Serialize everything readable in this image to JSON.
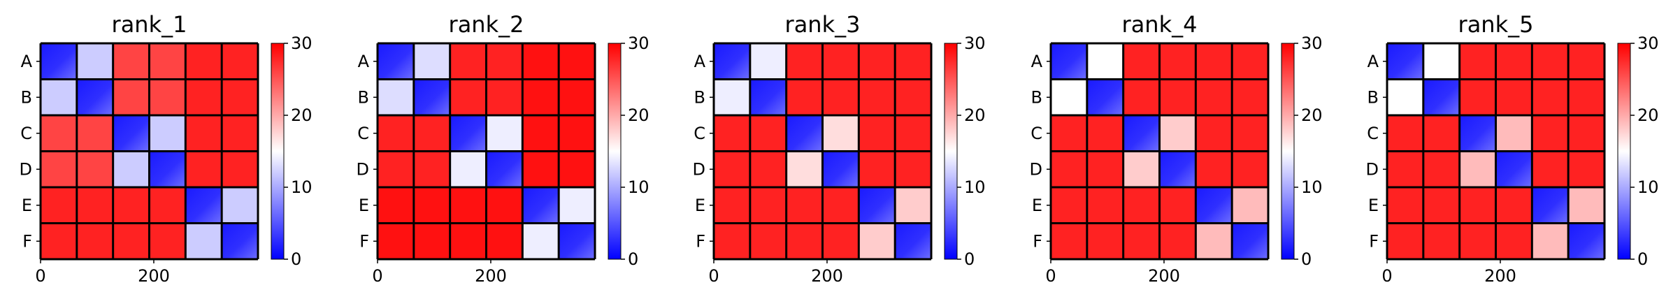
{
  "colorbar": {
    "colors": [
      "#0000ff",
      "#ffffff",
      "#ff0000"
    ],
    "min": 0,
    "max": 30,
    "ticks": [
      0,
      10,
      20,
      30
    ],
    "tick_labels": [
      "0",
      "10",
      "20",
      "30"
    ]
  },
  "chart_data": [
    {
      "type": "heatmap",
      "title": "rank_1",
      "block_labels": [
        "A",
        "B",
        "C",
        "D",
        "E",
        "F"
      ],
      "x_ticks": [
        0,
        200
      ],
      "x_tick_labels": [
        "0",
        "200"
      ],
      "xlim": [
        0,
        384
      ],
      "block_values": [
        [
          3,
          12,
          26,
          26,
          28,
          28
        ],
        [
          12,
          3,
          26,
          26,
          28,
          28
        ],
        [
          26,
          26,
          3,
          12,
          28,
          28
        ],
        [
          26,
          26,
          12,
          3,
          28,
          28
        ],
        [
          28,
          28,
          28,
          28,
          3,
          12
        ],
        [
          28,
          28,
          28,
          28,
          12,
          3
        ]
      ]
    },
    {
      "type": "heatmap",
      "title": "rank_2",
      "block_labels": [
        "A",
        "B",
        "C",
        "D",
        "E",
        "F"
      ],
      "x_ticks": [
        0,
        200
      ],
      "x_tick_labels": [
        "0",
        "200"
      ],
      "xlim": [
        0,
        384
      ],
      "block_values": [
        [
          3,
          13,
          28,
          28,
          29,
          29
        ],
        [
          13,
          3,
          28,
          28,
          29,
          29
        ],
        [
          28,
          28,
          3,
          14,
          29,
          29
        ],
        [
          28,
          28,
          14,
          3,
          29,
          29
        ],
        [
          29,
          29,
          29,
          29,
          3,
          14
        ],
        [
          29,
          29,
          29,
          29,
          14,
          3
        ]
      ]
    },
    {
      "type": "heatmap",
      "title": "rank_3",
      "block_labels": [
        "A",
        "B",
        "C",
        "D",
        "E",
        "F"
      ],
      "x_ticks": [
        0,
        200
      ],
      "x_tick_labels": [
        "0",
        "200"
      ],
      "xlim": [
        0,
        384
      ],
      "block_values": [
        [
          3,
          14,
          28,
          28,
          28,
          28
        ],
        [
          14,
          3,
          28,
          28,
          28,
          28
        ],
        [
          28,
          28,
          3,
          17,
          28,
          28
        ],
        [
          28,
          28,
          17,
          3,
          28,
          28
        ],
        [
          28,
          28,
          28,
          28,
          3,
          18
        ],
        [
          28,
          28,
          28,
          28,
          18,
          3
        ]
      ]
    },
    {
      "type": "heatmap",
      "title": "rank_4",
      "block_labels": [
        "A",
        "B",
        "C",
        "D",
        "E",
        "F"
      ],
      "x_ticks": [
        0,
        200
      ],
      "x_tick_labels": [
        "0",
        "200"
      ],
      "xlim": [
        0,
        384
      ],
      "block_values": [
        [
          3,
          15,
          28,
          28,
          28,
          28
        ],
        [
          15,
          3,
          28,
          28,
          28,
          28
        ],
        [
          28,
          28,
          3,
          18,
          28,
          28
        ],
        [
          28,
          28,
          18,
          3,
          28,
          28
        ],
        [
          28,
          28,
          28,
          28,
          3,
          19
        ],
        [
          28,
          28,
          28,
          28,
          19,
          3
        ]
      ]
    },
    {
      "type": "heatmap",
      "title": "rank_5",
      "block_labels": [
        "A",
        "B",
        "C",
        "D",
        "E",
        "F"
      ],
      "x_ticks": [
        0,
        200
      ],
      "x_tick_labels": [
        "0",
        "200"
      ],
      "xlim": [
        0,
        384
      ],
      "block_values": [
        [
          3,
          15,
          28,
          28,
          28,
          28
        ],
        [
          15,
          3,
          28,
          28,
          28,
          28
        ],
        [
          28,
          28,
          3,
          19,
          28,
          28
        ],
        [
          28,
          28,
          19,
          3,
          28,
          28
        ],
        [
          28,
          28,
          28,
          28,
          3,
          19
        ],
        [
          28,
          28,
          28,
          28,
          19,
          3
        ]
      ]
    }
  ]
}
